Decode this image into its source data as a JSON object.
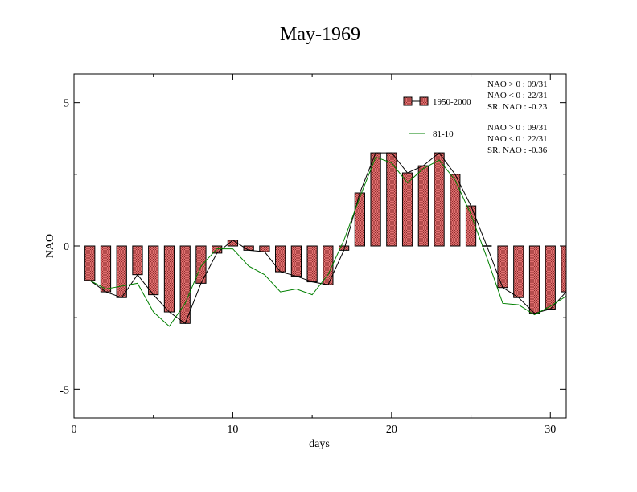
{
  "chart_data": {
    "type": "bar",
    "title": "May-1969",
    "xlabel": "days",
    "ylabel": "NAO",
    "xlim": [
      0,
      31
    ],
    "ylim": [
      -6,
      6
    ],
    "xticks": [
      0,
      10,
      20,
      30
    ],
    "yticks": [
      -5,
      0,
      5
    ],
    "x": [
      1,
      2,
      3,
      4,
      5,
      6,
      7,
      8,
      9,
      10,
      11,
      12,
      13,
      14,
      15,
      16,
      17,
      18,
      19,
      20,
      21,
      22,
      23,
      24,
      25,
      26,
      27,
      28,
      29,
      30,
      31
    ],
    "series": [
      {
        "name": "1950-2000",
        "kind": "bar",
        "color": "#e07070",
        "values": [
          -1.2,
          -1.6,
          -1.8,
          -1.0,
          -1.7,
          -2.3,
          -2.7,
          -1.3,
          -0.25,
          0.2,
          -0.15,
          -0.2,
          -0.9,
          -1.05,
          -1.25,
          -1.35,
          -0.15,
          1.85,
          3.25,
          3.25,
          2.55,
          2.8,
          3.25,
          2.5,
          1.4,
          0.0,
          -1.45,
          -1.8,
          -2.35,
          -2.2,
          -1.6
        ]
      },
      {
        "name": "81-10",
        "kind": "line",
        "color": "#008000",
        "values": [
          -1.2,
          -1.5,
          -1.4,
          -1.3,
          -2.3,
          -2.8,
          -2.0,
          -0.7,
          -0.1,
          -0.1,
          -0.7,
          -1.0,
          -1.6,
          -1.5,
          -1.7,
          -1.0,
          0.2,
          1.7,
          3.1,
          2.9,
          2.2,
          2.7,
          3.0,
          2.3,
          1.1,
          -0.4,
          -2.0,
          -2.05,
          -2.4,
          -2.1,
          -1.75
        ]
      }
    ],
    "legend_position": "top-right",
    "stats": [
      [
        "NAO > 0 : 09/31",
        "NAO < 0 : 22/31",
        "SR. NAO : -0.23"
      ],
      [
        "NAO > 0 : 09/31",
        "NAO < 0 : 22/31",
        "SR. NAO : -0.36"
      ]
    ]
  }
}
